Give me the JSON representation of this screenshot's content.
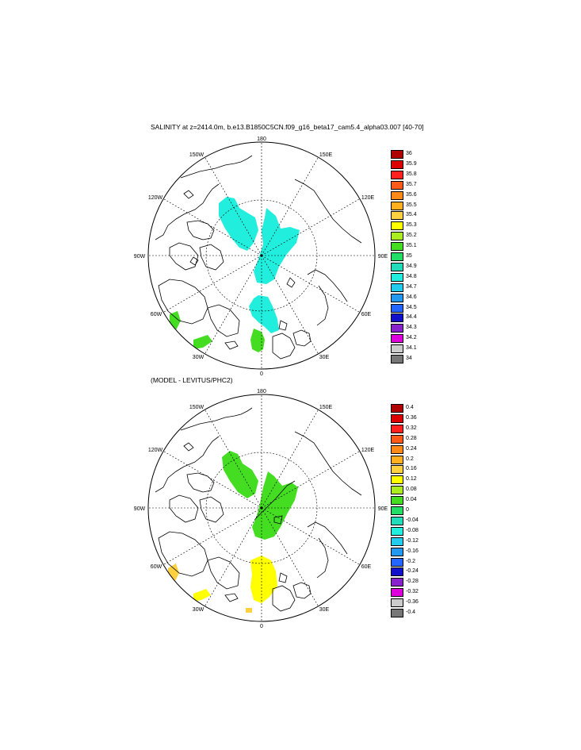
{
  "panels": [
    {
      "title": "SALINITY at z=2414.0m, b.e13.B1850C5CN.f09_g16_beta17_cam5.4_alpha03.007 [40-70]",
      "meridian_labels": {
        "top": "180",
        "top_left": "150W",
        "top_right": "150E",
        "upper_left": "120W",
        "upper_right": "120E",
        "left": "90W",
        "right": "90E",
        "lower_left": "60W",
        "lower_right": "60E",
        "bottom_left": "30W",
        "bottom_right": "30E",
        "bottom": "0"
      },
      "colorbar": {
        "labels": [
          "36",
          "35.9",
          "35.8",
          "35.7",
          "35.6",
          "35.5",
          "35.4",
          "35.3",
          "35.2",
          "35.1",
          "35",
          "34.9",
          "34.8",
          "34.7",
          "34.6",
          "34.5",
          "34.4",
          "34.3",
          "34.2",
          "34.1",
          "34"
        ],
        "colors": [
          "#b00000",
          "#dd0000",
          "#ff2020",
          "#ff5a1a",
          "#ff8a1a",
          "#ffb020",
          "#ffd040",
          "#ffff00",
          "#aaee22",
          "#44dd22",
          "#22dd66",
          "#22ddbb",
          "#22eedd",
          "#22ccee",
          "#2299ee",
          "#2266ff",
          "#1111cc",
          "#8822cc",
          "#dd00dd",
          "#cccccc",
          "#777777"
        ]
      }
    },
    {
      "title": "(MODEL - LEVITUS/PHC2)",
      "meridian_labels": {
        "top": "180",
        "top_left": "150W",
        "top_right": "150E",
        "upper_left": "120W",
        "upper_right": "120E",
        "left": "90W",
        "right": "90E",
        "lower_left": "60W",
        "lower_right": "60E",
        "bottom_left": "30W",
        "bottom_right": "30E",
        "bottom": "0"
      },
      "colorbar": {
        "labels": [
          "0.4",
          "0.36",
          "0.32",
          "0.28",
          "0.24",
          "0.2",
          "0.16",
          "0.12",
          "0.08",
          "0.04",
          "0",
          "-0.04",
          "-0.08",
          "-0.12",
          "-0.16",
          "-0.2",
          "-0.24",
          "-0.28",
          "-0.32",
          "-0.36",
          "-0.4"
        ],
        "colors": [
          "#b00000",
          "#dd0000",
          "#ff2020",
          "#ff5a1a",
          "#ff8a1a",
          "#ffb020",
          "#ffd040",
          "#ffff00",
          "#aaee22",
          "#44dd22",
          "#22dd66",
          "#22ddbb",
          "#22eedd",
          "#22ccee",
          "#2299ee",
          "#2266ff",
          "#1111cc",
          "#8822cc",
          "#dd00dd",
          "#cccccc",
          "#777777"
        ]
      }
    }
  ]
}
